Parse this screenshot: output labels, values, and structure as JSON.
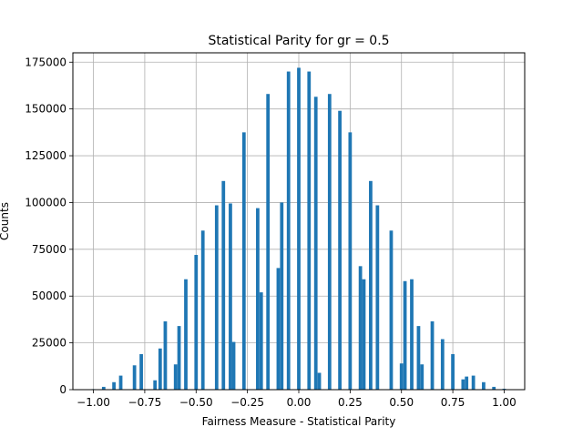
{
  "chart_data": {
    "type": "bar",
    "title": "Statistical Parity for gr = 0.5",
    "xlabel": "Fairness Measure - Statistical Parity",
    "ylabel": "Counts",
    "xlim": [
      -1.1,
      1.1
    ],
    "ylim": [
      0,
      180000
    ],
    "grid": true,
    "bar_color": "#1f77b4",
    "bin_width": 0.0167,
    "x_ticks": [
      -1.0,
      -0.75,
      -0.5,
      -0.25,
      0.0,
      0.25,
      0.5,
      0.75,
      1.0
    ],
    "x_tick_labels": [
      "−1.00",
      "−0.75",
      "−0.50",
      "−0.25",
      "0.00",
      "0.25",
      "0.50",
      "0.75",
      "1.00"
    ],
    "y_ticks": [
      0,
      25000,
      50000,
      75000,
      100000,
      125000,
      150000,
      175000
    ],
    "y_tick_labels": [
      "0",
      "25000",
      "50000",
      "75000",
      "100000",
      "125000",
      "150000",
      "175000"
    ],
    "bars": [
      {
        "x": -1.0,
        "y": 300
      },
      {
        "x": -0.95,
        "y": 1500
      },
      {
        "x": -0.9,
        "y": 4000
      },
      {
        "x": -0.867,
        "y": 7500
      },
      {
        "x": -0.8,
        "y": 13000
      },
      {
        "x": -0.767,
        "y": 19000
      },
      {
        "x": -0.7,
        "y": 5000
      },
      {
        "x": -0.675,
        "y": 22000
      },
      {
        "x": -0.65,
        "y": 36500
      },
      {
        "x": -0.6,
        "y": 13500
      },
      {
        "x": -0.583,
        "y": 34000
      },
      {
        "x": -0.55,
        "y": 59000
      },
      {
        "x": -0.5,
        "y": 72000
      },
      {
        "x": -0.467,
        "y": 85000
      },
      {
        "x": -0.4,
        "y": 98500
      },
      {
        "x": -0.367,
        "y": 111500
      },
      {
        "x": -0.333,
        "y": 99500
      },
      {
        "x": -0.317,
        "y": 25500
      },
      {
        "x": -0.267,
        "y": 137500
      },
      {
        "x": -0.2,
        "y": 97000
      },
      {
        "x": -0.183,
        "y": 52000
      },
      {
        "x": -0.15,
        "y": 158000
      },
      {
        "x": -0.1,
        "y": 65000
      },
      {
        "x": -0.083,
        "y": 100000
      },
      {
        "x": -0.05,
        "y": 170000
      },
      {
        "x": 0.0,
        "y": 172000
      },
      {
        "x": 0.05,
        "y": 170000
      },
      {
        "x": 0.083,
        "y": 156500
      },
      {
        "x": 0.1,
        "y": 9000
      },
      {
        "x": 0.15,
        "y": 158000
      },
      {
        "x": 0.2,
        "y": 149000
      },
      {
        "x": 0.25,
        "y": 137500
      },
      {
        "x": 0.3,
        "y": 66000
      },
      {
        "x": 0.317,
        "y": 59000
      },
      {
        "x": 0.35,
        "y": 111500
      },
      {
        "x": 0.383,
        "y": 98500
      },
      {
        "x": 0.45,
        "y": 85000
      },
      {
        "x": 0.5,
        "y": 14000
      },
      {
        "x": 0.517,
        "y": 58000
      },
      {
        "x": 0.55,
        "y": 59000
      },
      {
        "x": 0.583,
        "y": 34000
      },
      {
        "x": 0.6,
        "y": 13500
      },
      {
        "x": 0.65,
        "y": 36500
      },
      {
        "x": 0.7,
        "y": 27000
      },
      {
        "x": 0.75,
        "y": 19000
      },
      {
        "x": 0.8,
        "y": 5500
      },
      {
        "x": 0.817,
        "y": 7000
      },
      {
        "x": 0.85,
        "y": 7500
      },
      {
        "x": 0.9,
        "y": 4000
      },
      {
        "x": 0.95,
        "y": 1500
      },
      {
        "x": 1.0,
        "y": 500
      }
    ]
  }
}
